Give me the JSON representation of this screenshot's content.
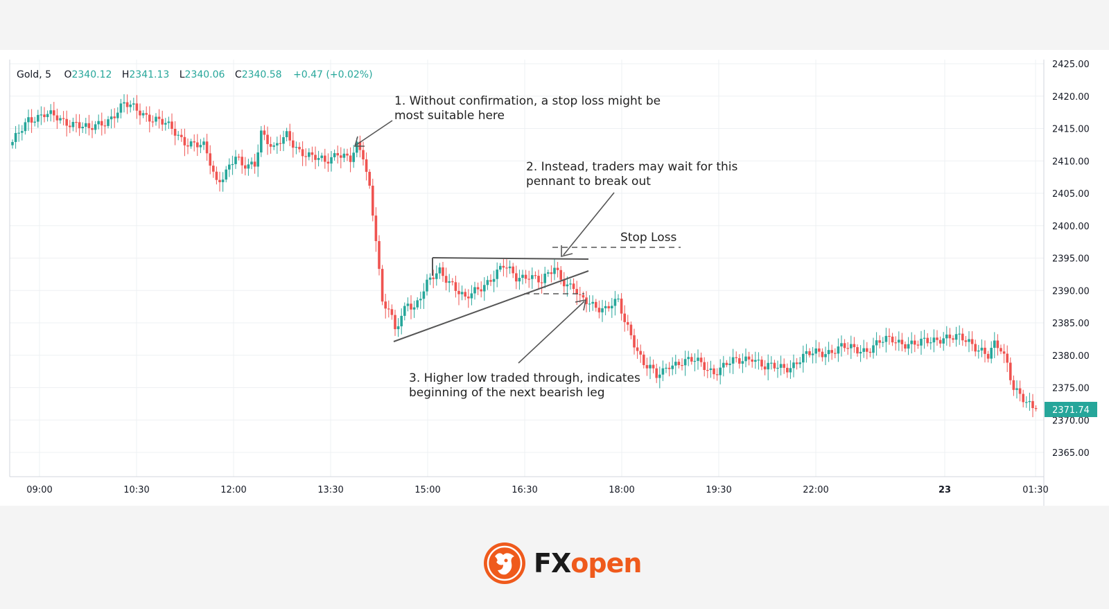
{
  "legend": {
    "symbol": "Gold, 5",
    "o_label": "O",
    "o_value": "2340.12",
    "h_label": "H",
    "h_value": "2341.13",
    "l_label": "L",
    "l_value": "2340.06",
    "c_label": "C",
    "c_value": "2340.58",
    "change": "+0.47 (+0.02%)"
  },
  "price_badge": "2371.74",
  "annotations": {
    "note1_line1": "1. Without confirmation, a stop loss might be",
    "note1_line2": "most suitable here",
    "note2_line1": "2. Instead, traders may wait for this",
    "note2_line2": "pennant to break out",
    "stop_loss": "Stop Loss",
    "note3_line1": "3. Higher low traded through, indicates",
    "note3_line2": "beginning of the next bearish leg"
  },
  "brand": {
    "fx": "FX",
    "open": "open"
  },
  "colors": {
    "up": "#26a69a",
    "down": "#ef5350",
    "grid": "#eef0f3",
    "accent": "#ef5a1c"
  },
  "chart_data": {
    "type": "candlestick",
    "ylim": [
      2362,
      2426
    ],
    "y_ticks": [
      "2425.00",
      "2420.00",
      "2415.00",
      "2410.00",
      "2405.00",
      "2400.00",
      "2395.00",
      "2390.00",
      "2385.00",
      "2380.00",
      "2375.00",
      "2370.00",
      "2365.00"
    ],
    "x_ticks": [
      "09:00",
      "10:30",
      "12:00",
      "13:30",
      "15:00",
      "16:30",
      "18:00",
      "19:30",
      "22:00",
      "23",
      "01:30"
    ],
    "close_path": [
      [
        0,
        2412.5
      ],
      [
        5,
        2416.6
      ],
      [
        10,
        2417.2
      ],
      [
        16,
        2416.1
      ],
      [
        20,
        2416.0
      ],
      [
        24,
        2414.6
      ],
      [
        30,
        2416.5
      ],
      [
        35,
        2418.6
      ],
      [
        40,
        2417.7
      ],
      [
        46,
        2416.1
      ],
      [
        50,
        2414.8
      ],
      [
        54,
        2413.2
      ],
      [
        60,
        2412.0
      ],
      [
        62,
        2409.6
      ],
      [
        64,
        2406.8
      ],
      [
        66,
        2408.0
      ],
      [
        70,
        2410.6
      ],
      [
        72,
        2408.8
      ],
      [
        76,
        2409.6
      ],
      [
        78,
        2414.8
      ],
      [
        82,
        2411.6
      ],
      [
        86,
        2413.9
      ],
      [
        90,
        2411.8
      ],
      [
        94,
        2410.4
      ],
      [
        98,
        2409.8
      ],
      [
        102,
        2411.6
      ],
      [
        106,
        2410.0
      ],
      [
        108,
        2412.0
      ],
      [
        110,
        2410.7
      ],
      [
        112,
        2406.0
      ],
      [
        114,
        2398.5
      ],
      [
        116,
        2388.0
      ],
      [
        118,
        2387.0
      ],
      [
        120,
        2383.5
      ],
      [
        122,
        2386.0
      ],
      [
        124,
        2388.5
      ],
      [
        126,
        2387.5
      ],
      [
        130,
        2390.8
      ],
      [
        134,
        2393.0
      ],
      [
        138,
        2391.2
      ],
      [
        142,
        2388.4
      ],
      [
        146,
        2390.2
      ],
      [
        150,
        2392.0
      ],
      [
        154,
        2393.6
      ],
      [
        158,
        2392.0
      ],
      [
        162,
        2392.6
      ],
      [
        166,
        2391.0
      ],
      [
        170,
        2393.6
      ],
      [
        172,
        2392.2
      ],
      [
        174,
        2391.0
      ],
      [
        176,
        2390.5
      ],
      [
        178,
        2388.4
      ],
      [
        182,
        2387.8
      ],
      [
        186,
        2387.4
      ],
      [
        188,
        2387.9
      ],
      [
        190,
        2388.0
      ],
      [
        192,
        2385.0
      ],
      [
        194,
        2383.2
      ],
      [
        196,
        2381.0
      ],
      [
        198,
        2379.0
      ],
      [
        200,
        2378.0
      ],
      [
        202,
        2376.5
      ],
      [
        204,
        2377.2
      ],
      [
        206,
        2378.6
      ],
      [
        210,
        2379.2
      ],
      [
        214,
        2379.0
      ],
      [
        218,
        2378.0
      ],
      [
        220,
        2377.6
      ],
      [
        224,
        2378.6
      ],
      [
        228,
        2379.0
      ],
      [
        232,
        2380.0
      ],
      [
        236,
        2378.0
      ],
      [
        240,
        2378.1
      ],
      [
        244,
        2378.4
      ],
      [
        248,
        2379.6
      ],
      [
        252,
        2380.4
      ],
      [
        256,
        2380.7
      ],
      [
        260,
        2381.1
      ],
      [
        264,
        2380.9
      ],
      [
        268,
        2381.0
      ],
      [
        272,
        2381.9
      ],
      [
        276,
        2382.4
      ],
      [
        280,
        2382.0
      ],
      [
        284,
        2381.6
      ],
      [
        288,
        2382.2
      ],
      [
        292,
        2383.0
      ],
      [
        296,
        2382.6
      ],
      [
        300,
        2382.0
      ],
      [
        304,
        2381.0
      ],
      [
        306,
        2380.0
      ],
      [
        308,
        2381.4
      ],
      [
        310,
        2380.6
      ],
      [
        312,
        2378.6
      ],
      [
        314,
        2375.2
      ],
      [
        316,
        2374.4
      ],
      [
        318,
        2372.6
      ],
      [
        320,
        2371.7
      ]
    ]
  }
}
